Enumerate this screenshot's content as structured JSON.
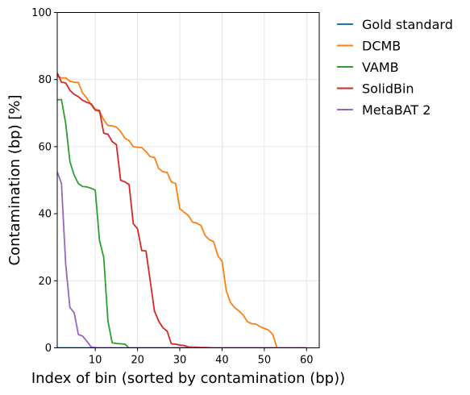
{
  "chart_data": {
    "type": "line",
    "title": "",
    "xlabel": "Index of bin (sorted by contamination (bp))",
    "ylabel": "Contamination (bp) [%]",
    "xlim": [
      1,
      63
    ],
    "ylim": [
      0,
      100
    ],
    "xticks": [
      10,
      20,
      30,
      40,
      50,
      60
    ],
    "yticks": [
      0,
      20,
      40,
      60,
      80,
      100
    ],
    "grid": true,
    "legend_position": "outside-top-right",
    "series": [
      {
        "name": "Gold standard",
        "color": "#1f77b4",
        "points": [
          [
            1,
            0
          ],
          [
            60,
            0
          ]
        ]
      },
      {
        "name": "DCMB",
        "color": "#ff7f0e",
        "points": [
          [
            1,
            81
          ],
          [
            2,
            80.5
          ],
          [
            3,
            80.5
          ],
          [
            4,
            79.5
          ],
          [
            5,
            79.2
          ],
          [
            6,
            79.1
          ],
          [
            7,
            76
          ],
          [
            8,
            74.5
          ],
          [
            9,
            72.5
          ],
          [
            10,
            70.8
          ],
          [
            11,
            70.5
          ],
          [
            12,
            68
          ],
          [
            13,
            66.3
          ],
          [
            14,
            66.2
          ],
          [
            15,
            65.8
          ],
          [
            16,
            64.5
          ],
          [
            17,
            62.5
          ],
          [
            18,
            61.8
          ],
          [
            19,
            60
          ],
          [
            20,
            59.8
          ],
          [
            21,
            59.7
          ],
          [
            22,
            58.5
          ],
          [
            23,
            57
          ],
          [
            24,
            56.8
          ],
          [
            25,
            53.5
          ],
          [
            26,
            52.5
          ],
          [
            27,
            52.3
          ],
          [
            28,
            49.5
          ],
          [
            29,
            49
          ],
          [
            30,
            41.5
          ],
          [
            31,
            40.5
          ],
          [
            32,
            39.5
          ],
          [
            33,
            37.5
          ],
          [
            34,
            37.2
          ],
          [
            35,
            36.5
          ],
          [
            36,
            33.5
          ],
          [
            37,
            32.2
          ],
          [
            38,
            31.7
          ],
          [
            39,
            27.5
          ],
          [
            40,
            25.8
          ],
          [
            41,
            17
          ],
          [
            42,
            13.5
          ],
          [
            43,
            12
          ],
          [
            44,
            11
          ],
          [
            45,
            9.8
          ],
          [
            46,
            7.8
          ],
          [
            47,
            7.2
          ],
          [
            48,
            7.1
          ],
          [
            49,
            6.3
          ],
          [
            50,
            5.8
          ],
          [
            51,
            5.3
          ],
          [
            52,
            4
          ],
          [
            53,
            0
          ],
          [
            60,
            0
          ]
        ]
      },
      {
        "name": "VAMB",
        "color": "#2ca02c",
        "points": [
          [
            1,
            74
          ],
          [
            2,
            74
          ],
          [
            3,
            67
          ],
          [
            4,
            55.5
          ],
          [
            5,
            51.5
          ],
          [
            6,
            49
          ],
          [
            7,
            48.1
          ],
          [
            8,
            48
          ],
          [
            9,
            47.6
          ],
          [
            10,
            47
          ],
          [
            11,
            32
          ],
          [
            12,
            27
          ],
          [
            13,
            8
          ],
          [
            14,
            1.5
          ],
          [
            15,
            1.3
          ],
          [
            16,
            1.2
          ],
          [
            17,
            1.1
          ],
          [
            18,
            0
          ],
          [
            60,
            0
          ]
        ]
      },
      {
        "name": "SolidBin",
        "color": "#d62728",
        "points": [
          [
            1,
            82
          ],
          [
            2,
            79.2
          ],
          [
            3,
            79
          ],
          [
            4,
            76.8
          ],
          [
            5,
            75.6
          ],
          [
            6,
            74.9
          ],
          [
            7,
            73.8
          ],
          [
            8,
            73.2
          ],
          [
            9,
            72.8
          ],
          [
            10,
            71
          ],
          [
            11,
            70.8
          ],
          [
            12,
            64
          ],
          [
            13,
            63.7
          ],
          [
            14,
            61.5
          ],
          [
            15,
            60.6
          ],
          [
            16,
            50
          ],
          [
            17,
            49.5
          ],
          [
            18,
            48.7
          ],
          [
            19,
            37
          ],
          [
            20,
            35.5
          ],
          [
            21,
            29
          ],
          [
            22,
            28.9
          ],
          [
            23,
            20
          ],
          [
            24,
            11
          ],
          [
            25,
            8
          ],
          [
            26,
            6
          ],
          [
            27,
            5
          ],
          [
            28,
            1.2
          ],
          [
            29,
            1.1
          ],
          [
            30,
            0.8
          ],
          [
            31,
            0.7
          ],
          [
            32,
            0.3
          ],
          [
            33,
            0.2
          ],
          [
            34,
            0.2
          ],
          [
            35,
            0.1
          ],
          [
            36,
            0.1
          ],
          [
            38,
            0
          ],
          [
            60,
            0
          ]
        ]
      },
      {
        "name": "MetaBAT 2",
        "color": "#9467bd",
        "points": [
          [
            1,
            52.5
          ],
          [
            2,
            49
          ],
          [
            3,
            25
          ],
          [
            4,
            12
          ],
          [
            5,
            10.5
          ],
          [
            6,
            4
          ],
          [
            7,
            3.5
          ],
          [
            8,
            2
          ],
          [
            9,
            0.3
          ],
          [
            10,
            0.1
          ],
          [
            11,
            0
          ],
          [
            60,
            0
          ]
        ]
      }
    ]
  }
}
